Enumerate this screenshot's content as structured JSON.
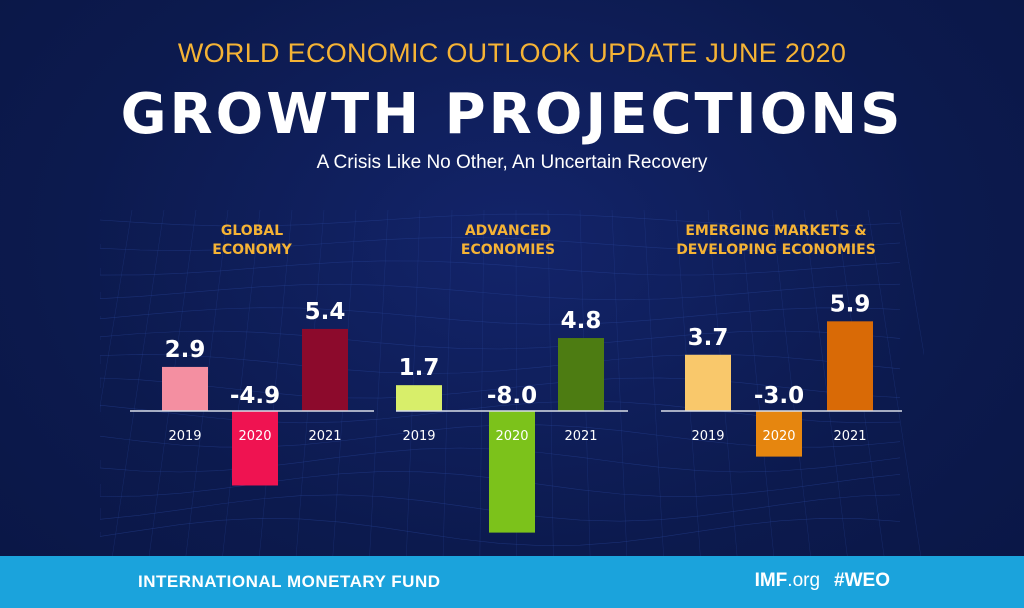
{
  "header": {
    "subtitle": "WORLD ECONOMIC OUTLOOK UPDATE JUNE 2020",
    "title": "GROWTH PROJECTIONS",
    "tagline": "A Crisis Like No Other, An Uncertain Recovery"
  },
  "chart_data": [
    {
      "type": "bar",
      "title": "GLOBAL ECONOMY",
      "title_lines": [
        "GLOBAL",
        "ECONOMY"
      ],
      "categories": [
        "2019",
        "2020",
        "2021"
      ],
      "values": [
        2.9,
        -4.9,
        5.4
      ],
      "value_labels": [
        "2.9",
        "-4.9",
        "5.4"
      ],
      "colors": [
        "#f48fa1",
        "#ef1351",
        "#8c0a2c"
      ],
      "xlabel": "",
      "ylabel": ""
    },
    {
      "type": "bar",
      "title": "ADVANCED ECONOMIES",
      "title_lines": [
        "ADVANCED",
        "ECONOMIES"
      ],
      "categories": [
        "2019",
        "2020",
        "2021"
      ],
      "values": [
        1.7,
        -8.0,
        4.8
      ],
      "value_labels": [
        "1.7",
        "-8.0",
        "4.8"
      ],
      "colors": [
        "#d8ee6a",
        "#7cc21b",
        "#4d7c12"
      ],
      "xlabel": "",
      "ylabel": ""
    },
    {
      "type": "bar",
      "title": "EMERGING MARKETS & DEVELOPING ECONOMIES",
      "title_lines": [
        "EMERGING MARKETS &",
        "DEVELOPING ECONOMIES"
      ],
      "categories": [
        "2019",
        "2020",
        "2021"
      ],
      "values": [
        3.7,
        -3.0,
        5.9
      ],
      "value_labels": [
        "3.7",
        "-3.0",
        "5.9"
      ],
      "colors": [
        "#f9c86b",
        "#e6860f",
        "#d96a06"
      ],
      "xlabel": "",
      "ylabel": ""
    }
  ],
  "colors": {
    "background": "#0c1a4e",
    "heading_accent": "#f5b335",
    "footer": "#1ba3dc",
    "text": "#ffffff",
    "baseline": "#d8dde8"
  },
  "footer": {
    "org": "INTERNATIONAL MONETARY FUND",
    "site_bold": "IMF",
    "site_rest": ".org",
    "hashtag": "#WEO"
  }
}
